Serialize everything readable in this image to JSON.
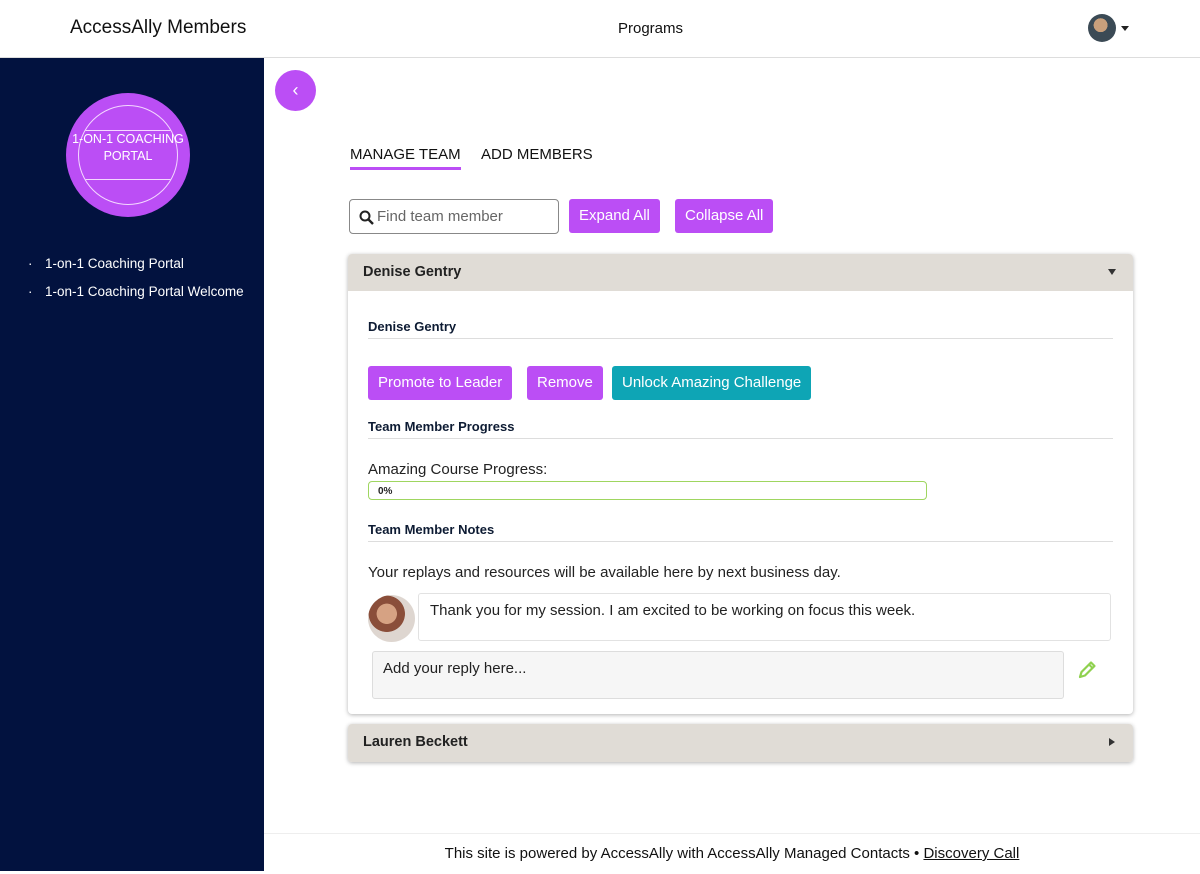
{
  "header": {
    "brand": "AccessAlly Members",
    "nav": "Programs",
    "avatar_icon": "user-avatar"
  },
  "sidebar": {
    "logo_text": "1-ON-1 COACHING PORTAL",
    "items": [
      {
        "label": "1-on-1 Coaching Portal"
      },
      {
        "label": "1-on-1 Coaching Portal Welcome"
      }
    ]
  },
  "main": {
    "back_icon": "chevron-left",
    "tabs": [
      {
        "label": "MANAGE TEAM",
        "active": true
      },
      {
        "label": "ADD MEMBERS",
        "active": false
      }
    ],
    "search": {
      "placeholder": "Find team member",
      "value": ""
    },
    "expand_label": "Expand All",
    "collapse_label": "Collapse All",
    "members": [
      {
        "name": "Denise Gentry",
        "expanded": true,
        "detail_name": "Denise Gentry",
        "actions": {
          "promote": "Promote to Leader",
          "remove": "Remove",
          "unlock": "Unlock Amazing Challenge"
        },
        "progress_heading": "Team Member Progress",
        "progress_label": "Amazing Course Progress:",
        "progress_percent": 0,
        "progress_text": "0%",
        "notes_heading": "Team Member Notes",
        "notes_intro": "Your replays and resources will be available here by next business day.",
        "note": "Thank you for my session. I am excited to be working on focus this week.",
        "reply_placeholder": "Add your reply here..."
      },
      {
        "name": "Lauren Beckett",
        "expanded": false
      }
    ]
  },
  "footer": {
    "text": "This site is powered by AccessAlly with AccessAlly Managed Contacts •",
    "link": "Discovery Call"
  },
  "colors": {
    "accent": "#bb4ef5",
    "teal": "#0ea5b5",
    "sidebar": "#02123f",
    "card_header": "#e0dcd6",
    "progress_border": "#9fd660"
  }
}
